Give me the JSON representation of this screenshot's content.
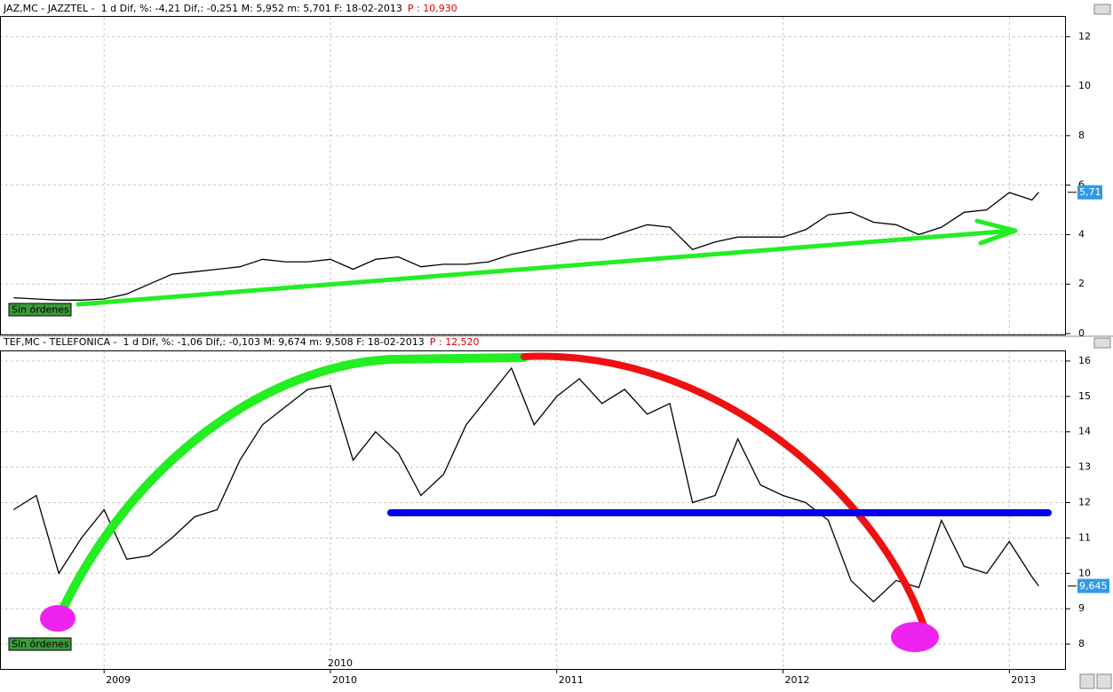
{
  "chart_data": [
    {
      "type": "line",
      "title": "JAZ,MC - JAZZTEL -  1 d Dif, %: -4,21 Dif,: -0,251 M: 5,952 m: 5,701 F: 18-02-2013",
      "price_note": "P : 10,930",
      "last_label": "5,71",
      "status_label": "Sin órdenes",
      "x": [
        2008.6,
        2008.7,
        2008.8,
        2008.9,
        2009.0,
        2009.1,
        2009.2,
        2009.3,
        2009.4,
        2009.5,
        2009.6,
        2009.7,
        2009.8,
        2009.9,
        2010.0,
        2010.1,
        2010.2,
        2010.3,
        2010.4,
        2010.5,
        2010.6,
        2010.7,
        2010.8,
        2010.9,
        2011.0,
        2011.1,
        2011.2,
        2011.3,
        2011.4,
        2011.5,
        2011.6,
        2011.7,
        2011.8,
        2011.9,
        2012.0,
        2012.1,
        2012.2,
        2012.3,
        2012.4,
        2012.5,
        2012.6,
        2012.7,
        2012.8,
        2012.9,
        2013.0,
        2013.1,
        2013.13
      ],
      "values": [
        1.45,
        1.4,
        1.35,
        1.35,
        1.4,
        1.6,
        2.0,
        2.4,
        2.5,
        2.6,
        2.7,
        3.0,
        2.9,
        2.9,
        3.0,
        2.6,
        3.0,
        3.1,
        2.7,
        2.8,
        2.8,
        2.9,
        3.2,
        3.4,
        3.6,
        3.8,
        3.8,
        4.1,
        4.4,
        4.3,
        3.4,
        3.7,
        3.9,
        3.9,
        3.9,
        4.2,
        4.8,
        4.9,
        4.5,
        4.4,
        4.0,
        4.3,
        4.9,
        5.0,
        5.7,
        5.4,
        5.71
      ],
      "color": "#000000",
      "xlim": [
        2008.54,
        2013.25
      ],
      "xticks": [
        2009,
        2010,
        2011,
        2012,
        2013
      ],
      "ylim": [
        0,
        12.8
      ],
      "yticks": [
        0,
        2,
        4,
        6,
        8,
        10,
        12
      ],
      "grid": true
    },
    {
      "type": "line",
      "title": "TEF,MC - TELEFONICA -  1 d Dif, %: -1,06 Dif,: -0,103 M: 9,674 m: 9,508 F: 18-02-2013",
      "price_note": "P : 12,520",
      "last_label": "9,645",
      "status_label": "Sin órdenes",
      "annotation": "2010",
      "x": [
        2008.6,
        2008.7,
        2008.8,
        2008.9,
        2009.0,
        2009.1,
        2009.2,
        2009.3,
        2009.4,
        2009.5,
        2009.6,
        2009.7,
        2009.8,
        2009.9,
        2010.0,
        2010.1,
        2010.2,
        2010.3,
        2010.4,
        2010.5,
        2010.6,
        2010.7,
        2010.8,
        2010.9,
        2011.0,
        2011.1,
        2011.2,
        2011.3,
        2011.4,
        2011.5,
        2011.6,
        2011.7,
        2011.8,
        2011.9,
        2012.0,
        2012.1,
        2012.2,
        2012.3,
        2012.4,
        2012.5,
        2012.6,
        2012.7,
        2012.8,
        2012.9,
        2013.0,
        2013.1,
        2013.13
      ],
      "values": [
        11.8,
        12.2,
        10.0,
        11.0,
        11.8,
        10.4,
        10.5,
        11.0,
        11.6,
        11.8,
        13.2,
        14.2,
        14.7,
        15.2,
        15.3,
        13.2,
        14.0,
        13.4,
        12.2,
        12.8,
        14.2,
        15.0,
        15.8,
        14.2,
        15.0,
        15.5,
        14.8,
        15.2,
        14.5,
        14.8,
        12.0,
        12.2,
        13.8,
        12.5,
        12.2,
        12.0,
        11.5,
        9.8,
        9.2,
        9.8,
        9.6,
        11.5,
        10.2,
        10.0,
        10.9,
        9.9,
        9.645
      ],
      "color": "#000000",
      "xlim": [
        2008.54,
        2013.25
      ],
      "xticks": [
        2009,
        2010,
        2011,
        2012,
        2013
      ],
      "ylim": [
        7.3,
        16.3
      ],
      "yticks": [
        8,
        9,
        10,
        11,
        12,
        13,
        14,
        15,
        16
      ],
      "grid": true
    }
  ]
}
